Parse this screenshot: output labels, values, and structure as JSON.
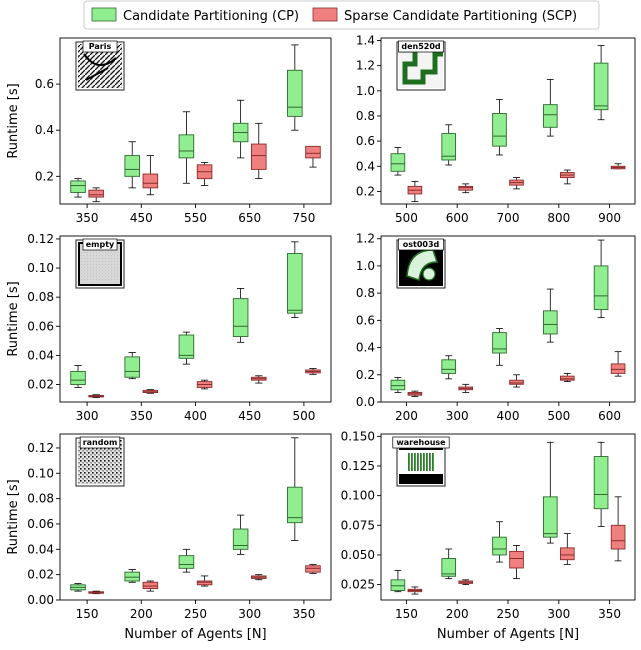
{
  "legend": {
    "items": [
      {
        "label": "Candidate Partitioning (CP)",
        "color": "#90ee90"
      },
      {
        "label": "Sparse Candidate Partitioning (SCP)",
        "color": "#f08080"
      }
    ],
    "placement": "top-center"
  },
  "colors": {
    "cp_fill": "#90ee90",
    "cp_edge": "#2e6b2e",
    "scp_fill": "#f08080",
    "scp_edge": "#8b2c2c"
  },
  "chart_data": [
    {
      "type": "box",
      "map": "Paris",
      "xlabel": "",
      "ylabel": "Runtime [s]",
      "categories": [
        "350",
        "450",
        "550",
        "650",
        "750"
      ],
      "ylim": [
        0.08,
        0.8
      ],
      "yticks": [
        0.2,
        0.4,
        0.6
      ],
      "ytick_labels": [
        "0.2",
        "0.4",
        "0.6"
      ],
      "series": [
        {
          "name": "Candidate Partitioning (CP)",
          "boxes": [
            {
              "min": 0.11,
              "q1": 0.13,
              "median": 0.16,
              "q3": 0.18,
              "max": 0.19
            },
            {
              "min": 0.15,
              "q1": 0.2,
              "median": 0.23,
              "q3": 0.29,
              "max": 0.35
            },
            {
              "min": 0.17,
              "q1": 0.28,
              "median": 0.31,
              "q3": 0.38,
              "max": 0.48
            },
            {
              "min": 0.28,
              "q1": 0.35,
              "median": 0.39,
              "q3": 0.43,
              "max": 0.53
            },
            {
              "min": 0.4,
              "q1": 0.46,
              "median": 0.5,
              "q3": 0.66,
              "max": 0.77
            }
          ]
        },
        {
          "name": "Sparse Candidate Partitioning (SCP)",
          "boxes": [
            {
              "min": 0.09,
              "q1": 0.11,
              "median": 0.12,
              "q3": 0.14,
              "max": 0.15
            },
            {
              "min": 0.12,
              "q1": 0.15,
              "median": 0.17,
              "q3": 0.21,
              "max": 0.29
            },
            {
              "min": 0.16,
              "q1": 0.19,
              "median": 0.22,
              "q3": 0.25,
              "max": 0.26
            },
            {
              "min": 0.19,
              "q1": 0.23,
              "median": 0.29,
              "q3": 0.34,
              "max": 0.43
            },
            {
              "min": 0.24,
              "q1": 0.28,
              "median": 0.3,
              "q3": 0.33,
              "max": 0.33
            }
          ]
        }
      ]
    },
    {
      "type": "box",
      "map": "den520d",
      "xlabel": "",
      "ylabel": "",
      "categories": [
        "500",
        "600",
        "700",
        "800",
        "900"
      ],
      "ylim": [
        0.1,
        1.42
      ],
      "yticks": [
        0.2,
        0.4,
        0.6,
        0.8,
        1.0,
        1.2,
        1.4
      ],
      "ytick_labels": [
        "0.2",
        "0.4",
        "0.6",
        "0.8",
        "1.0",
        "1.2",
        "1.4"
      ],
      "series": [
        {
          "name": "Candidate Partitioning (CP)",
          "boxes": [
            {
              "min": 0.33,
              "q1": 0.36,
              "median": 0.42,
              "q3": 0.5,
              "max": 0.55
            },
            {
              "min": 0.41,
              "q1": 0.45,
              "median": 0.48,
              "q3": 0.66,
              "max": 0.73
            },
            {
              "min": 0.49,
              "q1": 0.56,
              "median": 0.64,
              "q3": 0.82,
              "max": 0.93
            },
            {
              "min": 0.64,
              "q1": 0.71,
              "median": 0.81,
              "q3": 0.89,
              "max": 1.09
            },
            {
              "min": 0.77,
              "q1": 0.85,
              "median": 0.88,
              "q3": 1.22,
              "max": 1.36
            }
          ]
        },
        {
          "name": "Sparse Candidate Partitioning (SCP)",
          "boxes": [
            {
              "min": 0.12,
              "q1": 0.18,
              "median": 0.21,
              "q3": 0.24,
              "max": 0.28
            },
            {
              "min": 0.19,
              "q1": 0.21,
              "median": 0.23,
              "q3": 0.24,
              "max": 0.26
            },
            {
              "min": 0.22,
              "q1": 0.25,
              "median": 0.27,
              "q3": 0.29,
              "max": 0.31
            },
            {
              "min": 0.26,
              "q1": 0.31,
              "median": 0.33,
              "q3": 0.35,
              "max": 0.37
            },
            {
              "min": 0.38,
              "q1": 0.38,
              "median": 0.39,
              "q3": 0.4,
              "max": 0.42
            }
          ]
        }
      ]
    },
    {
      "type": "box",
      "map": "empty",
      "xlabel": "",
      "ylabel": "Runtime [s]",
      "categories": [
        "300",
        "350",
        "400",
        "450",
        "500"
      ],
      "ylim": [
        0.008,
        0.122
      ],
      "yticks": [
        0.02,
        0.04,
        0.06,
        0.08,
        0.1,
        0.12
      ],
      "ytick_labels": [
        "0.02",
        "0.04",
        "0.06",
        "0.08",
        "0.10",
        "0.12"
      ],
      "series": [
        {
          "name": "Candidate Partitioning (CP)",
          "boxes": [
            {
              "min": 0.018,
              "q1": 0.02,
              "median": 0.023,
              "q3": 0.029,
              "max": 0.033
            },
            {
              "min": 0.024,
              "q1": 0.025,
              "median": 0.029,
              "q3": 0.039,
              "max": 0.042
            },
            {
              "min": 0.034,
              "q1": 0.038,
              "median": 0.04,
              "q3": 0.054,
              "max": 0.056
            },
            {
              "min": 0.049,
              "q1": 0.053,
              "median": 0.06,
              "q3": 0.079,
              "max": 0.086
            },
            {
              "min": 0.066,
              "q1": 0.069,
              "median": 0.071,
              "q3": 0.11,
              "max": 0.118
            }
          ]
        },
        {
          "name": "Sparse Candidate Partitioning (SCP)",
          "boxes": [
            {
              "min": 0.011,
              "q1": 0.0115,
              "median": 0.012,
              "q3": 0.0125,
              "max": 0.013
            },
            {
              "min": 0.014,
              "q1": 0.0145,
              "median": 0.015,
              "q3": 0.016,
              "max": 0.0165
            },
            {
              "min": 0.017,
              "q1": 0.018,
              "median": 0.02,
              "q3": 0.022,
              "max": 0.023
            },
            {
              "min": 0.021,
              "q1": 0.023,
              "median": 0.024,
              "q3": 0.025,
              "max": 0.026
            },
            {
              "min": 0.027,
              "q1": 0.028,
              "median": 0.029,
              "q3": 0.03,
              "max": 0.031
            }
          ]
        }
      ]
    },
    {
      "type": "box",
      "map": "ost003d",
      "xlabel": "",
      "ylabel": "",
      "categories": [
        "200",
        "300",
        "400",
        "500",
        "600"
      ],
      "ylim": [
        0.0,
        1.22
      ],
      "yticks": [
        0.0,
        0.2,
        0.4,
        0.6,
        0.8,
        1.0,
        1.2
      ],
      "ytick_labels": [
        "0.0",
        "0.2",
        "0.4",
        "0.6",
        "0.8",
        "1.0",
        "1.2"
      ],
      "series": [
        {
          "name": "Candidate Partitioning (CP)",
          "boxes": [
            {
              "min": 0.07,
              "q1": 0.09,
              "median": 0.12,
              "q3": 0.16,
              "max": 0.18
            },
            {
              "min": 0.17,
              "q1": 0.21,
              "median": 0.24,
              "q3": 0.31,
              "max": 0.34
            },
            {
              "min": 0.27,
              "q1": 0.36,
              "median": 0.39,
              "q3": 0.51,
              "max": 0.54
            },
            {
              "min": 0.44,
              "q1": 0.5,
              "median": 0.57,
              "q3": 0.67,
              "max": 0.83
            },
            {
              "min": 0.62,
              "q1": 0.68,
              "median": 0.78,
              "q3": 1.0,
              "max": 1.19
            }
          ]
        },
        {
          "name": "Sparse Candidate Partitioning (SCP)",
          "boxes": [
            {
              "min": 0.04,
              "q1": 0.05,
              "median": 0.06,
              "q3": 0.07,
              "max": 0.08
            },
            {
              "min": 0.07,
              "q1": 0.09,
              "median": 0.1,
              "q3": 0.11,
              "max": 0.13
            },
            {
              "min": 0.11,
              "q1": 0.13,
              "median": 0.14,
              "q3": 0.16,
              "max": 0.2
            },
            {
              "min": 0.15,
              "q1": 0.16,
              "median": 0.17,
              "q3": 0.19,
              "max": 0.21
            },
            {
              "min": 0.19,
              "q1": 0.21,
              "median": 0.24,
              "q3": 0.28,
              "max": 0.37
            }
          ]
        }
      ]
    },
    {
      "type": "box",
      "map": "random",
      "xlabel": "Number of Agents [N]",
      "ylabel": "Runtime [s]",
      "categories": [
        "150",
        "200",
        "250",
        "300",
        "350"
      ],
      "ylim": [
        0.0,
        0.131
      ],
      "yticks": [
        0.0,
        0.02,
        0.04,
        0.06,
        0.08,
        0.1,
        0.12
      ],
      "ytick_labels": [
        "0.00",
        "0.02",
        "0.04",
        "0.06",
        "0.08",
        "0.10",
        "0.12"
      ],
      "series": [
        {
          "name": "Candidate Partitioning (CP)",
          "boxes": [
            {
              "min": 0.007,
              "q1": 0.008,
              "median": 0.01,
              "q3": 0.012,
              "max": 0.013
            },
            {
              "min": 0.014,
              "q1": 0.015,
              "median": 0.018,
              "q3": 0.022,
              "max": 0.024
            },
            {
              "min": 0.022,
              "q1": 0.025,
              "median": 0.028,
              "q3": 0.035,
              "max": 0.04
            },
            {
              "min": 0.036,
              "q1": 0.04,
              "median": 0.043,
              "q3": 0.056,
              "max": 0.067
            },
            {
              "min": 0.047,
              "q1": 0.061,
              "median": 0.065,
              "q3": 0.089,
              "max": 0.128
            }
          ]
        },
        {
          "name": "Sparse Candidate Partitioning (SCP)",
          "boxes": [
            {
              "min": 0.005,
              "q1": 0.0055,
              "median": 0.006,
              "q3": 0.0065,
              "max": 0.007
            },
            {
              "min": 0.007,
              "q1": 0.009,
              "median": 0.011,
              "q3": 0.014,
              "max": 0.015
            },
            {
              "min": 0.011,
              "q1": 0.012,
              "median": 0.014,
              "q3": 0.015,
              "max": 0.019
            },
            {
              "min": 0.016,
              "q1": 0.017,
              "median": 0.018,
              "q3": 0.019,
              "max": 0.02
            },
            {
              "min": 0.021,
              "q1": 0.022,
              "median": 0.025,
              "q3": 0.027,
              "max": 0.028
            }
          ]
        }
      ]
    },
    {
      "type": "box",
      "map": "warehouse",
      "xlabel": "Number of Agents [N]",
      "ylabel": "",
      "categories": [
        "150",
        "200",
        "250",
        "300",
        "350"
      ],
      "ylim": [
        0.012,
        0.152
      ],
      "yticks": [
        0.025,
        0.05,
        0.075,
        0.1,
        0.125,
        0.15
      ],
      "ytick_labels": [
        "0.025",
        "0.050",
        "0.075",
        "0.100",
        "0.125",
        "0.150"
      ],
      "series": [
        {
          "name": "Candidate Partitioning (CP)",
          "boxes": [
            {
              "min": 0.019,
              "q1": 0.02,
              "median": 0.024,
              "q3": 0.029,
              "max": 0.037
            },
            {
              "min": 0.03,
              "q1": 0.032,
              "median": 0.034,
              "q3": 0.047,
              "max": 0.055
            },
            {
              "min": 0.044,
              "q1": 0.05,
              "median": 0.055,
              "q3": 0.065,
              "max": 0.078
            },
            {
              "min": 0.06,
              "q1": 0.065,
              "median": 0.068,
              "q3": 0.099,
              "max": 0.145
            },
            {
              "min": 0.074,
              "q1": 0.089,
              "median": 0.101,
              "q3": 0.133,
              "max": 0.145
            }
          ]
        },
        {
          "name": "Sparse Candidate Partitioning (SCP)",
          "boxes": [
            {
              "min": 0.017,
              "q1": 0.019,
              "median": 0.02,
              "q3": 0.021,
              "max": 0.023
            },
            {
              "min": 0.025,
              "q1": 0.026,
              "median": 0.027,
              "q3": 0.028,
              "max": 0.029
            },
            {
              "min": 0.03,
              "q1": 0.039,
              "median": 0.047,
              "q3": 0.053,
              "max": 0.058
            },
            {
              "min": 0.042,
              "q1": 0.046,
              "median": 0.05,
              "q3": 0.056,
              "max": 0.068
            },
            {
              "min": 0.045,
              "q1": 0.055,
              "median": 0.062,
              "q3": 0.075,
              "max": 0.099
            }
          ]
        }
      ]
    }
  ]
}
